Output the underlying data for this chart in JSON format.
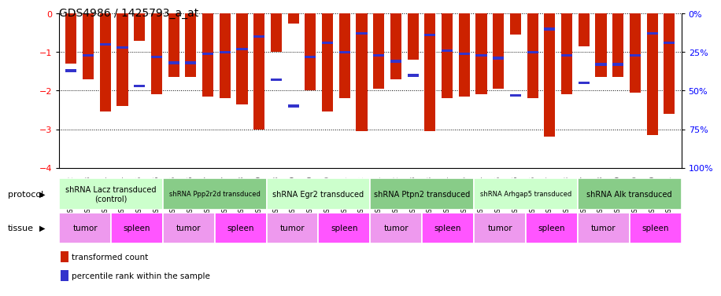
{
  "title": "GDS4986 / 1425793_a_at",
  "samples": [
    "GSM1290692",
    "GSM1290693",
    "GSM1290694",
    "GSM1290674",
    "GSM1290675",
    "GSM1290676",
    "GSM1290695",
    "GSM1290696",
    "GSM1290697",
    "GSM1290677",
    "GSM1290678",
    "GSM1290679",
    "GSM1290698",
    "GSM1290699",
    "GSM1290700",
    "GSM1290680",
    "GSM1290681",
    "GSM1290682",
    "GSM1290701",
    "GSM1290702",
    "GSM1290703",
    "GSM1290683",
    "GSM1290684",
    "GSM1290685",
    "GSM1290704",
    "GSM1290705",
    "GSM1290706",
    "GSM1290686",
    "GSM1290687",
    "GSM1290688",
    "GSM1290707",
    "GSM1290708",
    "GSM1290709",
    "GSM1290689",
    "GSM1290690",
    "GSM1290691"
  ],
  "bar_values": [
    -1.3,
    -1.7,
    -2.55,
    -2.4,
    -0.7,
    -2.1,
    -1.65,
    -1.65,
    -2.15,
    -2.2,
    -2.35,
    -3.0,
    -1.0,
    -0.25,
    -2.0,
    -2.55,
    -2.2,
    -3.05,
    -1.95,
    -1.7,
    -1.2,
    -3.05,
    -2.2,
    -2.15,
    -2.1,
    -1.95,
    -0.55,
    -2.2,
    -3.2,
    -2.1,
    -0.85,
    -1.65,
    -1.65,
    -2.05,
    -3.15,
    -2.6
  ],
  "percentile_values": [
    0.37,
    0.27,
    0.2,
    0.22,
    0.47,
    0.28,
    0.32,
    0.32,
    0.26,
    0.25,
    0.23,
    0.15,
    0.43,
    0.6,
    0.28,
    0.19,
    0.25,
    0.13,
    0.27,
    0.31,
    0.4,
    0.14,
    0.24,
    0.26,
    0.27,
    0.29,
    0.53,
    0.25,
    0.1,
    0.27,
    0.45,
    0.33,
    0.33,
    0.27,
    0.13,
    0.19
  ],
  "bar_color": "#cc2200",
  "percentile_color": "#3333cc",
  "ylim_min": -4,
  "ylim_max": 0,
  "yticks_left": [
    -4,
    -3,
    -2,
    -1,
    0
  ],
  "yticks_right": [
    0,
    25,
    50,
    75,
    100
  ],
  "y2labels": [
    "0%",
    "25%",
    "50%",
    "75%",
    "100%"
  ],
  "protocols": [
    {
      "label": "shRNA Lacz transduced\n(control)",
      "start": 0,
      "end": 5,
      "color": "#ccffcc",
      "fontsize": 7
    },
    {
      "label": "shRNA Ppp2r2d transduced",
      "start": 6,
      "end": 11,
      "color": "#88cc88",
      "fontsize": 6
    },
    {
      "label": "shRNA Egr2 transduced",
      "start": 12,
      "end": 17,
      "color": "#ccffcc",
      "fontsize": 7
    },
    {
      "label": "shRNA Ptpn2 transduced",
      "start": 18,
      "end": 23,
      "color": "#88cc88",
      "fontsize": 7
    },
    {
      "label": "shRNA Arhgap5 transduced",
      "start": 24,
      "end": 29,
      "color": "#ccffcc",
      "fontsize": 6
    },
    {
      "label": "shRNA Alk transduced",
      "start": 30,
      "end": 35,
      "color": "#88cc88",
      "fontsize": 7
    }
  ],
  "tissues": [
    {
      "label": "tumor",
      "start": 0,
      "end": 2,
      "color": "#ee99ee"
    },
    {
      "label": "spleen",
      "start": 3,
      "end": 5,
      "color": "#ff55ff"
    },
    {
      "label": "tumor",
      "start": 6,
      "end": 8,
      "color": "#ee99ee"
    },
    {
      "label": "spleen",
      "start": 9,
      "end": 11,
      "color": "#ff55ff"
    },
    {
      "label": "tumor",
      "start": 12,
      "end": 14,
      "color": "#ee99ee"
    },
    {
      "label": "spleen",
      "start": 15,
      "end": 17,
      "color": "#ff55ff"
    },
    {
      "label": "tumor",
      "start": 18,
      "end": 20,
      "color": "#ee99ee"
    },
    {
      "label": "spleen",
      "start": 21,
      "end": 23,
      "color": "#ff55ff"
    },
    {
      "label": "tumor",
      "start": 24,
      "end": 26,
      "color": "#ee99ee"
    },
    {
      "label": "spleen",
      "start": 27,
      "end": 29,
      "color": "#ff55ff"
    },
    {
      "label": "tumor",
      "start": 30,
      "end": 32,
      "color": "#ee99ee"
    },
    {
      "label": "spleen",
      "start": 33,
      "end": 35,
      "color": "#ff55ff"
    }
  ],
  "protocol_row_label": "protocol",
  "tissue_row_label": "tissue",
  "legend_items": [
    {
      "color": "#cc2200",
      "label": "transformed count"
    },
    {
      "color": "#3333cc",
      "label": "percentile rank within the sample"
    }
  ],
  "background_color": "#ffffff"
}
